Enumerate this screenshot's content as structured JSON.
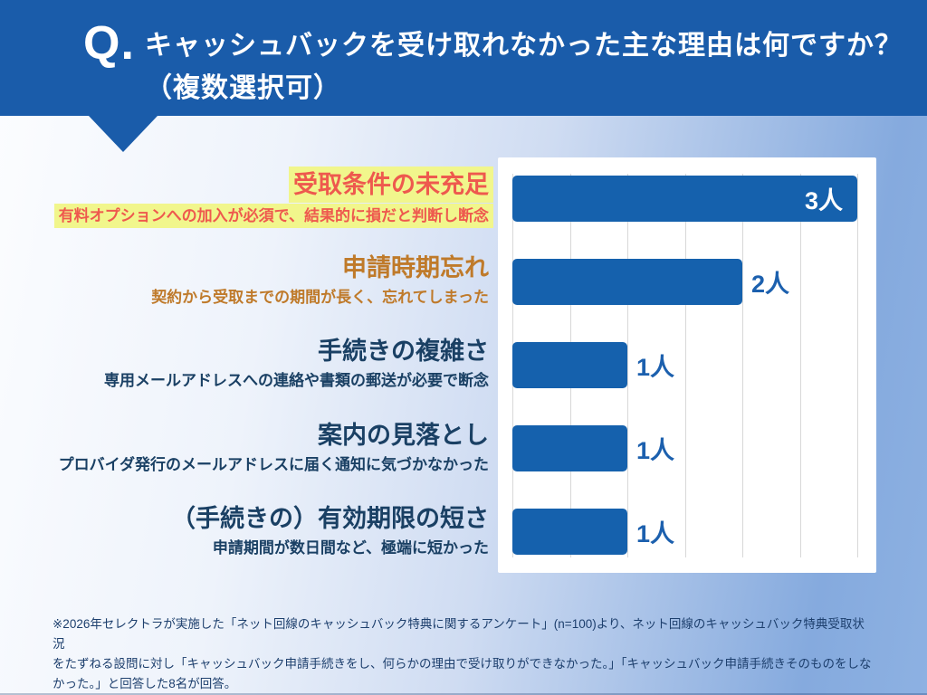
{
  "header": {
    "q_label": "Q.",
    "title_line1": "キャッシュバックを受け取れなかった主な理由は何ですか？",
    "title_line2": "（複数選択可）"
  },
  "items": [
    {
      "title": "受取条件の未充足",
      "subtitle": "有料オプションへの加入が必須で、結果的に損だと判断し断念",
      "emphasis": "highlight"
    },
    {
      "title": "申請時期忘れ",
      "subtitle": "契約から受取までの期間が長く、忘れてしまった",
      "emphasis": "orange"
    },
    {
      "title": "手続きの複雑さ",
      "subtitle": "専用メールアドレスへの連絡や書類の郵送が必要で断念",
      "emphasis": "none"
    },
    {
      "title": "案内の見落とし",
      "subtitle": "プロバイダ発行のメールアドレスに届く通知に気づかなかった",
      "emphasis": "none"
    },
    {
      "title": "（手続きの）有効期限の短さ",
      "subtitle": "申請期間が数日間など、極端に短かった",
      "emphasis": "none"
    }
  ],
  "chart_data": {
    "type": "bar",
    "orientation": "horizontal",
    "title": "キャッシュバックを受け取れなかった主な理由",
    "categories": [
      "受取条件の未充足",
      "申請時期忘れ",
      "手続きの複雑さ",
      "案内の見落とし",
      "（手続きの）有効期限の短さ"
    ],
    "values": [
      3,
      2,
      1,
      1,
      1
    ],
    "value_labels": [
      "3人",
      "2人",
      "1人",
      "1人",
      "1人"
    ],
    "unit": "人",
    "xlim": [
      0,
      3
    ],
    "grid_step": 0.5,
    "grid": true,
    "legend": false,
    "xlabel": "",
    "ylabel": ""
  },
  "footnote_lines": [
    "※2026年セレクトラが実施した「ネット回線のキャッシュバック特典に関するアンケート」(n=100)より、ネット回線のキャッシュバック特典受取状況",
    "をたずねる設問に対し「キャッシュバック申請手続きをし、何らかの理由で受け取りができなかった。」「キャッシュバック申請手続きそのものをしな",
    "かった。」と回答した8名が回答。"
  ],
  "colors": {
    "header_blue": "#1a5caa",
    "bar_blue": "#1561ad",
    "value_label_blue": "#1c60ae",
    "highlight_yellow": "#f1f68c",
    "highlight_red": "#ee594e",
    "orange_text": "#bf7a2a",
    "navy_text": "#1a4064",
    "gridline_gray": "#d8d8d8",
    "footnote_navy": "#1d3f6d",
    "panel_white": "#ffffff"
  }
}
